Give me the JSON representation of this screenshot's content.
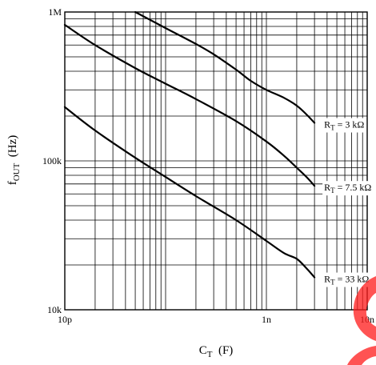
{
  "chart_data": {
    "type": "line",
    "title": "",
    "xlabel": {
      "main": "C",
      "sub": "T",
      "rest": "  (F)"
    },
    "ylabel": {
      "main": "f",
      "sub": "OUT",
      "rest": "  (Hz)"
    },
    "x_scale": "log",
    "y_scale": "log",
    "xlim": [
      1e-11,
      1e-08
    ],
    "ylim": [
      10000,
      1000000
    ],
    "x_ticks": [
      {
        "value": 1e-11,
        "label": "10p"
      },
      {
        "value": 1e-09,
        "label": "1n"
      },
      {
        "value": 1e-08,
        "label": "10n"
      }
    ],
    "y_ticks": [
      {
        "value": 10000,
        "label": "10k"
      },
      {
        "value": 100000,
        "label": "100k"
      },
      {
        "value": 1000000,
        "label": "1M"
      }
    ],
    "grid": true,
    "series": [
      {
        "label_main": "R",
        "label_sub": "T",
        "label_rest": " = 3 kΩ",
        "x": [
          5e-11,
          1e-10,
          2e-10,
          3e-10,
          5e-10,
          7e-10,
          1e-09,
          1.5e-09,
          2e-09,
          2.5e-09,
          3e-09
        ],
        "y": [
          1000000,
          780000,
          610000,
          520000,
          410000,
          345000,
          300000,
          265000,
          235000,
          205000,
          180000
        ]
      },
      {
        "label_main": "R",
        "label_sub": "T",
        "label_rest": " = 7.5 kΩ",
        "x": [
          1e-11,
          2e-11,
          5e-11,
          1e-10,
          2e-10,
          5e-10,
          1e-09,
          1.5e-09,
          2e-09,
          2.5e-09,
          3e-09
        ],
        "y": [
          820000,
          600000,
          420000,
          330000,
          260000,
          185000,
          135000,
          108000,
          90000,
          78000,
          68000
        ]
      },
      {
        "label_main": "R",
        "label_sub": "T",
        "label_rest": " = 33 kΩ",
        "x": [
          1e-11,
          2e-11,
          5e-11,
          1e-10,
          2e-10,
          5e-10,
          1e-09,
          1.5e-09,
          2e-09,
          2.5e-09,
          3e-09
        ],
        "y": [
          230000,
          160000,
          105000,
          78000,
          58000,
          40000,
          29000,
          24000,
          22000,
          19000,
          16500
        ]
      }
    ]
  },
  "colors": {
    "ink": "#000000",
    "watermark": "#ff1e1e"
  }
}
